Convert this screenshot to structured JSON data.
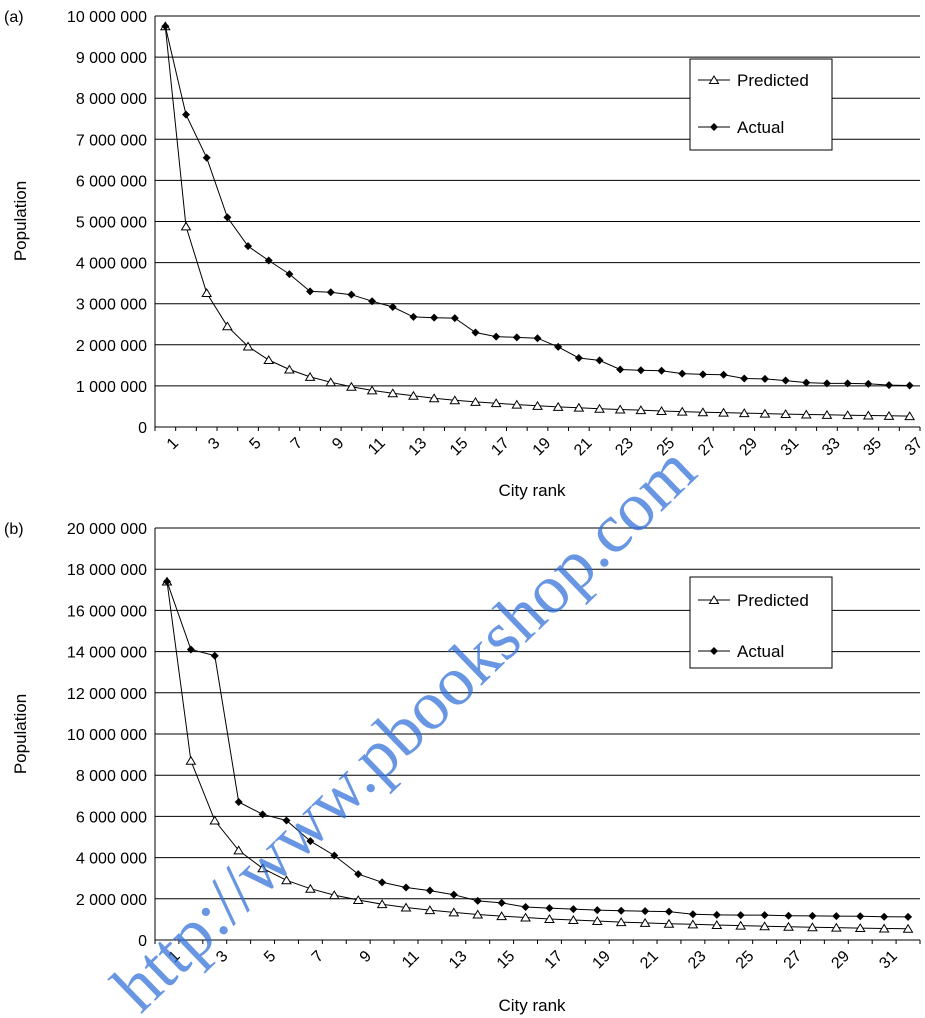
{
  "watermark": "http://www.pbookshop.com",
  "chart_data": [
    {
      "type": "line",
      "panel_label": "(a)",
      "xlabel": "City rank",
      "ylabel": "Population",
      "ylim": [
        0,
        10000000
      ],
      "yticks": [
        "0",
        "1 000 000",
        "2 000 000",
        "3 000 000",
        "4 000 000",
        "5 000 000",
        "6 000 000",
        "7 000 000",
        "8 000 000",
        "9 000 000",
        "10 000 000"
      ],
      "xtick_labels": [
        "1",
        "3",
        "5",
        "7",
        "9",
        "11",
        "13",
        "15",
        "17",
        "19",
        "21",
        "23",
        "25",
        "27",
        "29",
        "31",
        "33",
        "35",
        "37"
      ],
      "x": [
        1,
        2,
        3,
        4,
        5,
        6,
        7,
        8,
        9,
        10,
        11,
        12,
        13,
        14,
        15,
        16,
        17,
        18,
        19,
        20,
        21,
        22,
        23,
        24,
        25,
        26,
        27,
        28,
        29,
        30,
        31,
        32,
        33,
        34,
        35,
        36,
        37
      ],
      "grid": "horizontal",
      "legend_position": "top-right",
      "series": [
        {
          "name": "Predicted",
          "marker": "triangle",
          "values": [
            9750000,
            4880000,
            3260000,
            2450000,
            1960000,
            1630000,
            1400000,
            1220000,
            1090000,
            980000,
            890000,
            820000,
            760000,
            700000,
            650000,
            610000,
            580000,
            545000,
            515000,
            490000,
            470000,
            445000,
            425000,
            410000,
            390000,
            375000,
            360000,
            350000,
            338000,
            326000,
            315000,
            305000,
            296000,
            288000,
            280000,
            272000,
            265000
          ]
        },
        {
          "name": "Actual",
          "marker": "diamond",
          "values": [
            9750000,
            7600000,
            6550000,
            5100000,
            4400000,
            4050000,
            3720000,
            3300000,
            3280000,
            3220000,
            3060000,
            2920000,
            2680000,
            2660000,
            2650000,
            2300000,
            2200000,
            2180000,
            2160000,
            1950000,
            1680000,
            1620000,
            1400000,
            1380000,
            1370000,
            1300000,
            1280000,
            1270000,
            1180000,
            1170000,
            1130000,
            1080000,
            1060000,
            1060000,
            1050000,
            1020000,
            1010000
          ]
        }
      ]
    },
    {
      "type": "line",
      "panel_label": "(b)",
      "xlabel": "City rank",
      "ylabel": "Population",
      "ylim": [
        0,
        20000000
      ],
      "yticks": [
        "0",
        "2 000 000",
        "4 000 000",
        "6 000 000",
        "8 000 000",
        "10 000 000",
        "12 000 000",
        "14 000 000",
        "16 000 000",
        "18 000 000",
        "20 000 000"
      ],
      "xtick_labels": [
        "1",
        "3",
        "5",
        "7",
        "9",
        "11",
        "13",
        "15",
        "17",
        "19",
        "21",
        "23",
        "25",
        "27",
        "29",
        "31"
      ],
      "x": [
        1,
        2,
        3,
        4,
        5,
        6,
        7,
        8,
        9,
        10,
        11,
        12,
        13,
        14,
        15,
        16,
        17,
        18,
        19,
        20,
        21,
        22,
        23,
        24,
        25,
        26,
        27,
        28,
        29,
        30,
        31,
        32
      ],
      "grid": "horizontal",
      "legend_position": "top-right",
      "series": [
        {
          "name": "Predicted",
          "marker": "triangle",
          "values": [
            17400000,
            8700000,
            5800000,
            4350000,
            3480000,
            2900000,
            2490000,
            2180000,
            1940000,
            1740000,
            1580000,
            1450000,
            1340000,
            1240000,
            1160000,
            1090000,
            1020000,
            970000,
            920000,
            870000,
            830000,
            790000,
            760000,
            730000,
            700000,
            670000,
            645000,
            620000,
            600000,
            580000,
            560000,
            545000
          ]
        },
        {
          "name": "Actual",
          "marker": "diamond",
          "values": [
            17400000,
            14100000,
            13800000,
            6700000,
            6100000,
            5800000,
            4800000,
            4100000,
            3200000,
            2800000,
            2550000,
            2400000,
            2200000,
            1900000,
            1800000,
            1600000,
            1550000,
            1500000,
            1450000,
            1420000,
            1400000,
            1380000,
            1250000,
            1220000,
            1210000,
            1210000,
            1180000,
            1170000,
            1160000,
            1150000,
            1130000,
            1120000
          ]
        }
      ]
    }
  ]
}
